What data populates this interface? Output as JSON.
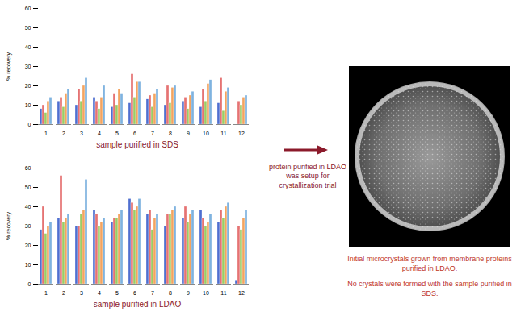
{
  "chart_data": [
    {
      "type": "bar",
      "x_label": "sample purified in SDS",
      "y_label": "% recovery",
      "categories": [
        "1",
        "2",
        "3",
        "4",
        "5",
        "6",
        "7",
        "8",
        "9",
        "10",
        "11",
        "12"
      ],
      "series": [
        {
          "color": "#4f6fd0",
          "values": [
            8,
            12,
            10,
            14,
            9,
            11,
            13,
            10,
            12,
            9,
            11,
            0
          ]
        },
        {
          "color": "#e57373",
          "values": [
            10,
            14,
            18,
            12,
            16,
            26,
            15,
            20,
            14,
            18,
            24,
            12
          ]
        },
        {
          "color": "#9ccc65",
          "values": [
            6,
            9,
            12,
            8,
            10,
            14,
            9,
            11,
            8,
            12,
            7,
            10
          ]
        },
        {
          "color": "#f4a460",
          "values": [
            12,
            16,
            20,
            14,
            18,
            22,
            16,
            19,
            15,
            21,
            17,
            14
          ]
        },
        {
          "color": "#7fb3e0",
          "values": [
            14,
            18,
            24,
            20,
            16,
            22,
            18,
            20,
            17,
            23,
            19,
            15
          ]
        }
      ],
      "ylim": [
        0,
        60
      ],
      "yticks": [
        0,
        10,
        20,
        30,
        40,
        50,
        60
      ],
      "grid": false
    },
    {
      "type": "bar",
      "x_label": "sample purified in LDAO",
      "y_label": "% recovery",
      "categories": [
        "1",
        "2",
        "3",
        "4",
        "5",
        "6",
        "7",
        "8",
        "9",
        "10",
        "11",
        "12"
      ],
      "series": [
        {
          "color": "#4f6fd0",
          "values": [
            28,
            34,
            30,
            38,
            32,
            44,
            36,
            30,
            34,
            38,
            32,
            2
          ]
        },
        {
          "color": "#e57373",
          "values": [
            40,
            56,
            30,
            36,
            34,
            42,
            38,
            36,
            40,
            34,
            38,
            30
          ]
        },
        {
          "color": "#9ccc65",
          "values": [
            26,
            32,
            36,
            30,
            34,
            38,
            28,
            36,
            32,
            30,
            34,
            28
          ]
        },
        {
          "color": "#f4a460",
          "values": [
            30,
            34,
            38,
            32,
            36,
            40,
            34,
            38,
            36,
            32,
            40,
            34
          ]
        },
        {
          "color": "#7fb3e0",
          "values": [
            32,
            36,
            54,
            34,
            38,
            44,
            36,
            40,
            38,
            36,
            42,
            38
          ]
        }
      ],
      "ylim": [
        0,
        60
      ],
      "yticks": [
        0,
        10,
        20,
        30,
        40,
        50,
        60
      ],
      "grid": false
    }
  ],
  "arrow_text": "protein purified in LDAO was setup for crystallization trial",
  "image_caption": [
    "Initial microcrystals grown from membrane proteins purified in LDAO.",
    "No crystals were formed with the sample purified in SDS."
  ]
}
